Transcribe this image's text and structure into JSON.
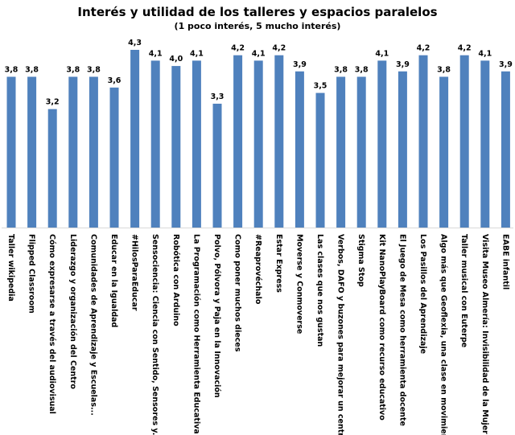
{
  "chart_data": {
    "type": "bar",
    "title": "Interés y utilidad de los talleres y espacios paralelos",
    "subtitle": "(1 poco interés, 5 mucho interés)",
    "categories": [
      "Taller wikipedia",
      "Flipped Classroom",
      "Cómo expresarse a través del audiovisual",
      "Liderazgo y organización del Centro",
      "Comunidades de Aprendizaje y Escuelas...",
      "Educar en la Igualdad",
      "#HilosParaEducar",
      "Sensociencia: Ciencia con Sentido, Sensores y...",
      "Robótica con Arduino",
      "La Programación como Herramienta Educativa",
      "Polvo, Pólvora y Paja en la Innovación",
      "Como poner muchos dieces",
      "#Reaprovéchalo",
      "Estar Express",
      "Moverse y Conmoverse",
      "Las clases que nos gustan",
      "Verbos, DAFO y buzones para mejorar un centro",
      "Stigma Stop",
      "Kit NanoPlayBoard como recurso educativo",
      "El Juego de Mesa como herramienta docente",
      "Los Pasillos del Aprendizaje",
      "Algo más que Geoflexia, una clase en movimiento",
      "Taller musical con Euterpe",
      "Visita Museo Almería: Invisibilidad de la Mujer",
      "EABE infantil"
    ],
    "values": [
      3.8,
      3.8,
      3.2,
      3.8,
      3.8,
      3.6,
      4.3,
      4.1,
      4.0,
      4.1,
      3.3,
      4.2,
      4.1,
      4.2,
      3.9,
      3.5,
      3.8,
      3.8,
      4.1,
      3.9,
      4.2,
      3.8,
      4.2,
      4.1,
      3.9
    ],
    "value_labels": [
      "3,8",
      "3,8",
      "3,2",
      "3,8",
      "3,8",
      "3,6",
      "4,3",
      "4,1",
      "4,0",
      "4,1",
      "3,3",
      "4,2",
      "4,1",
      "4,2",
      "3,9",
      "3,5",
      "3,8",
      "3,8",
      "4,1",
      "3,9",
      "4,2",
      "3,8",
      "4,2",
      "4,1",
      "3,9"
    ],
    "ylim": [
      1,
      4.3
    ],
    "grid": false,
    "legend": "none",
    "bar_color": "#4f81bd"
  }
}
